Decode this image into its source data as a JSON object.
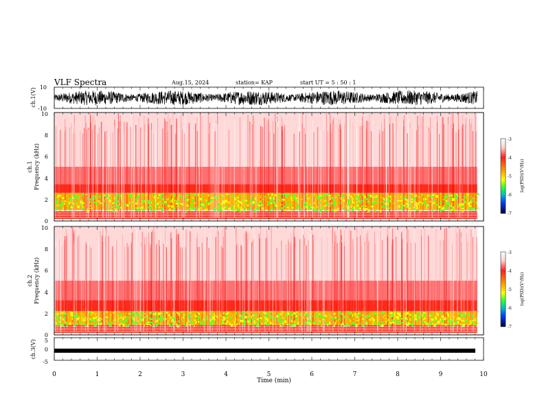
{
  "header": {
    "title": "VLF Spectra",
    "date": "Aug.15, 2024",
    "station": "station= KAP",
    "start": "start  UT =   5 : 50 : 1"
  },
  "chart_data": [
    {
      "type": "line",
      "name": "ch1-waveform",
      "ylabel": "ch.1(V)",
      "ylim": [
        -10,
        10
      ],
      "yticks": [
        "10",
        "-10"
      ],
      "xlim": [
        0,
        10
      ],
      "description_values": {
        "approx_range": [
          -8,
          8
        ]
      }
    },
    {
      "type": "heatmap",
      "name": "ch1-spectrogram",
      "ylabel": "ch.1\nFrequency  (kHz)",
      "ylim": [
        0,
        10
      ],
      "yticks": [
        "0",
        "2",
        "4",
        "6",
        "8",
        "10"
      ],
      "xlim": [
        0,
        9.85
      ],
      "bands": [
        {
          "freq_range": [
            0.2,
            0.9
          ],
          "level": -4.6
        },
        {
          "freq_range": [
            1.0,
            2.6
          ],
          "level": -5.2
        },
        {
          "freq_range": [
            2.6,
            3.4
          ],
          "level": -4.6
        },
        {
          "freq_range": [
            3.4,
            5.0
          ],
          "level": -3.9
        },
        {
          "freq_range": [
            5.0,
            10.0
          ],
          "level": -3.5
        }
      ],
      "colorbar": {
        "label": "log(PSD)(V²/Hz)",
        "ticks": [
          "-3",
          "-4",
          "-5",
          "-6",
          "-7"
        ],
        "range": [
          -7,
          -3
        ]
      }
    },
    {
      "type": "heatmap",
      "name": "ch2-spectrogram",
      "ylabel": "ch.2\nFrequency  (kHz)",
      "ylim": [
        0,
        10
      ],
      "yticks": [
        "0",
        "2",
        "4",
        "6",
        "8",
        "10"
      ],
      "xlim": [
        0,
        9.85
      ],
      "bands": [
        {
          "freq_range": [
            0.2,
            0.9
          ],
          "level": -4.6
        },
        {
          "freq_range": [
            0.9,
            2.2
          ],
          "level": -5.2
        },
        {
          "freq_range": [
            2.2,
            3.2
          ],
          "level": -4.6
        },
        {
          "freq_range": [
            3.2,
            5.0
          ],
          "level": -3.9
        },
        {
          "freq_range": [
            5.0,
            10.0
          ],
          "level": -3.5
        }
      ],
      "colorbar": {
        "label": "log(PSD)(V²/Hz)",
        "ticks": [
          "-3",
          "-4",
          "-5",
          "-6",
          "-7"
        ],
        "range": [
          -7,
          -3
        ]
      }
    },
    {
      "type": "line",
      "name": "ch3-waveform",
      "ylabel": "ch.3(V)",
      "ylim": [
        -5,
        5
      ],
      "yticks": [
        "5",
        "0",
        "-5"
      ],
      "xlim": [
        0,
        10
      ],
      "description_values": {
        "approx_level": -0.7,
        "approx_range": [
          -1.1,
          -0.3
        ]
      }
    }
  ],
  "xaxis": {
    "label": "Time  (min)",
    "ticks": [
      "0",
      "1",
      "2",
      "3",
      "4",
      "5",
      "6",
      "7",
      "8",
      "9",
      "10"
    ],
    "range": [
      0,
      10
    ]
  }
}
